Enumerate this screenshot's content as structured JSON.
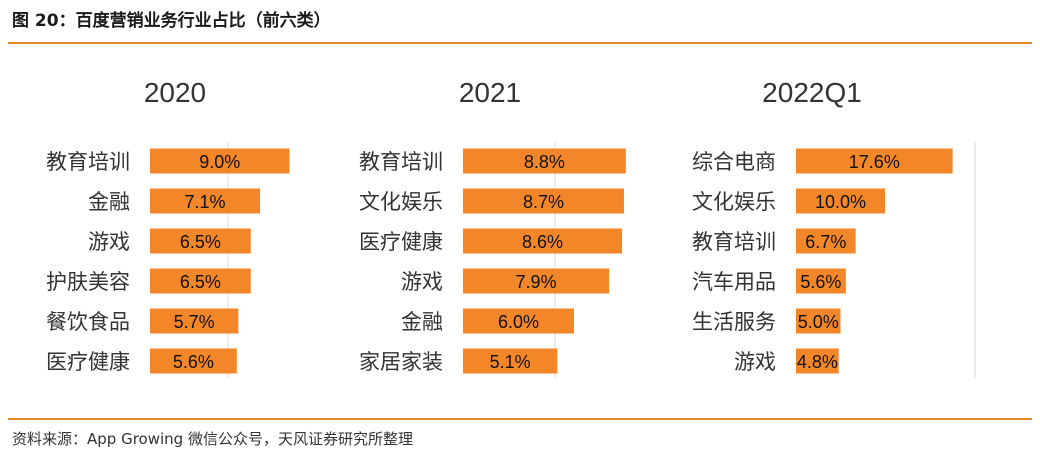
{
  "title": "图 20：百度营销业务行业占比（前六类）",
  "source": "资料来源：App Growing 微信公众号，天风证券研究所整理",
  "colors": {
    "bar": "#f4862a",
    "rule": "#e4862a"
  },
  "chart_data": [
    {
      "type": "bar",
      "orientation": "horizontal",
      "title": "2020",
      "categories": [
        "教育培训",
        "金融",
        "游戏",
        "护肤美容",
        "餐饮食品",
        "医疗健康"
      ],
      "values": [
        9.0,
        7.1,
        6.5,
        6.5,
        5.7,
        5.6
      ],
      "labels": [
        "9.0%",
        "7.1%",
        "6.5%",
        "6.5%",
        "5.7%",
        "5.6%"
      ],
      "unit": "%",
      "xlim": [
        0,
        10
      ]
    },
    {
      "type": "bar",
      "orientation": "horizontal",
      "title": "2021",
      "categories": [
        "教育培训",
        "文化娱乐",
        "医疗健康",
        "游戏",
        "金融",
        "家居家装"
      ],
      "values": [
        8.8,
        8.7,
        8.6,
        7.9,
        6.0,
        5.1
      ],
      "labels": [
        "8.8%",
        "8.7%",
        "8.6%",
        "7.9%",
        "6.0%",
        "5.1%"
      ],
      "unit": "%",
      "xlim": [
        0,
        10
      ]
    },
    {
      "type": "bar",
      "orientation": "horizontal",
      "title": "2022Q1",
      "categories": [
        "综合电商",
        "文化娱乐",
        "教育培训",
        "汽车用品",
        "生活服务",
        "游戏"
      ],
      "values": [
        17.6,
        10.0,
        6.7,
        5.6,
        5.0,
        4.8
      ],
      "labels": [
        "17.6%",
        "10.0%",
        "6.7%",
        "5.6%",
        "5.0%",
        "4.8%"
      ],
      "unit": "%",
      "xlim": [
        0,
        20
      ]
    }
  ]
}
